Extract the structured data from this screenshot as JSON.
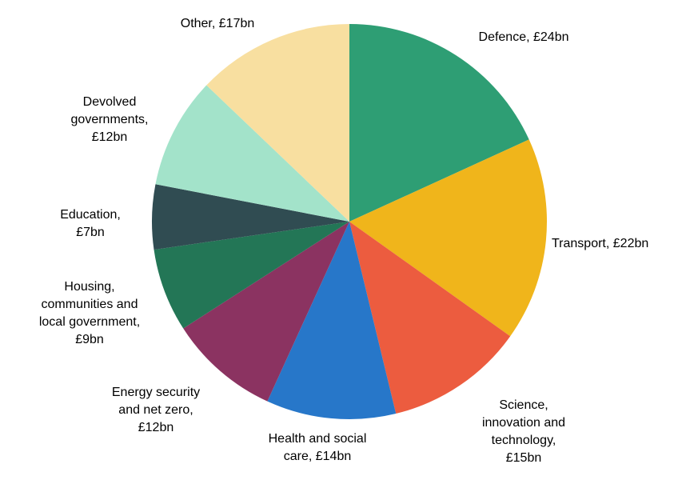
{
  "chart_data": {
    "type": "pie",
    "title": "",
    "start": "top",
    "direction": "clockwise",
    "unit": "£bn",
    "slices": [
      {
        "name": "Defence",
        "value": 24,
        "label": "Defence, £24bn",
        "color": "#2e9e74"
      },
      {
        "name": "Transport",
        "value": 22,
        "label": "Transport, £22bn",
        "color": "#f0b51b"
      },
      {
        "name": "Science, innovation and technology",
        "value": 15,
        "label": "Science,\ninnovation and\ntechnology,\n£15bn",
        "color": "#ec5c3f"
      },
      {
        "name": "Health and social care",
        "value": 14,
        "label": "Health and social\ncare, £14bn",
        "color": "#2777c9"
      },
      {
        "name": "Energy security and net zero",
        "value": 12,
        "label": "Energy security\nand net zero,\n£12bn",
        "color": "#8b3361"
      },
      {
        "name": "Housing, communities and local government",
        "value": 9,
        "label": "Housing,\ncommunities and\nlocal government,\n£9bn",
        "color": "#237656"
      },
      {
        "name": "Education",
        "value": 7,
        "label": "Education,\n£7bn",
        "color": "#304c52"
      },
      {
        "name": "Devolved governments",
        "value": 12,
        "label": "Devolved\ngovernments,\n£12bn",
        "color": "#a3e3ca"
      },
      {
        "name": "Other",
        "value": 17,
        "label": "Other, £17bn",
        "color": "#f8dfa0"
      }
    ]
  }
}
